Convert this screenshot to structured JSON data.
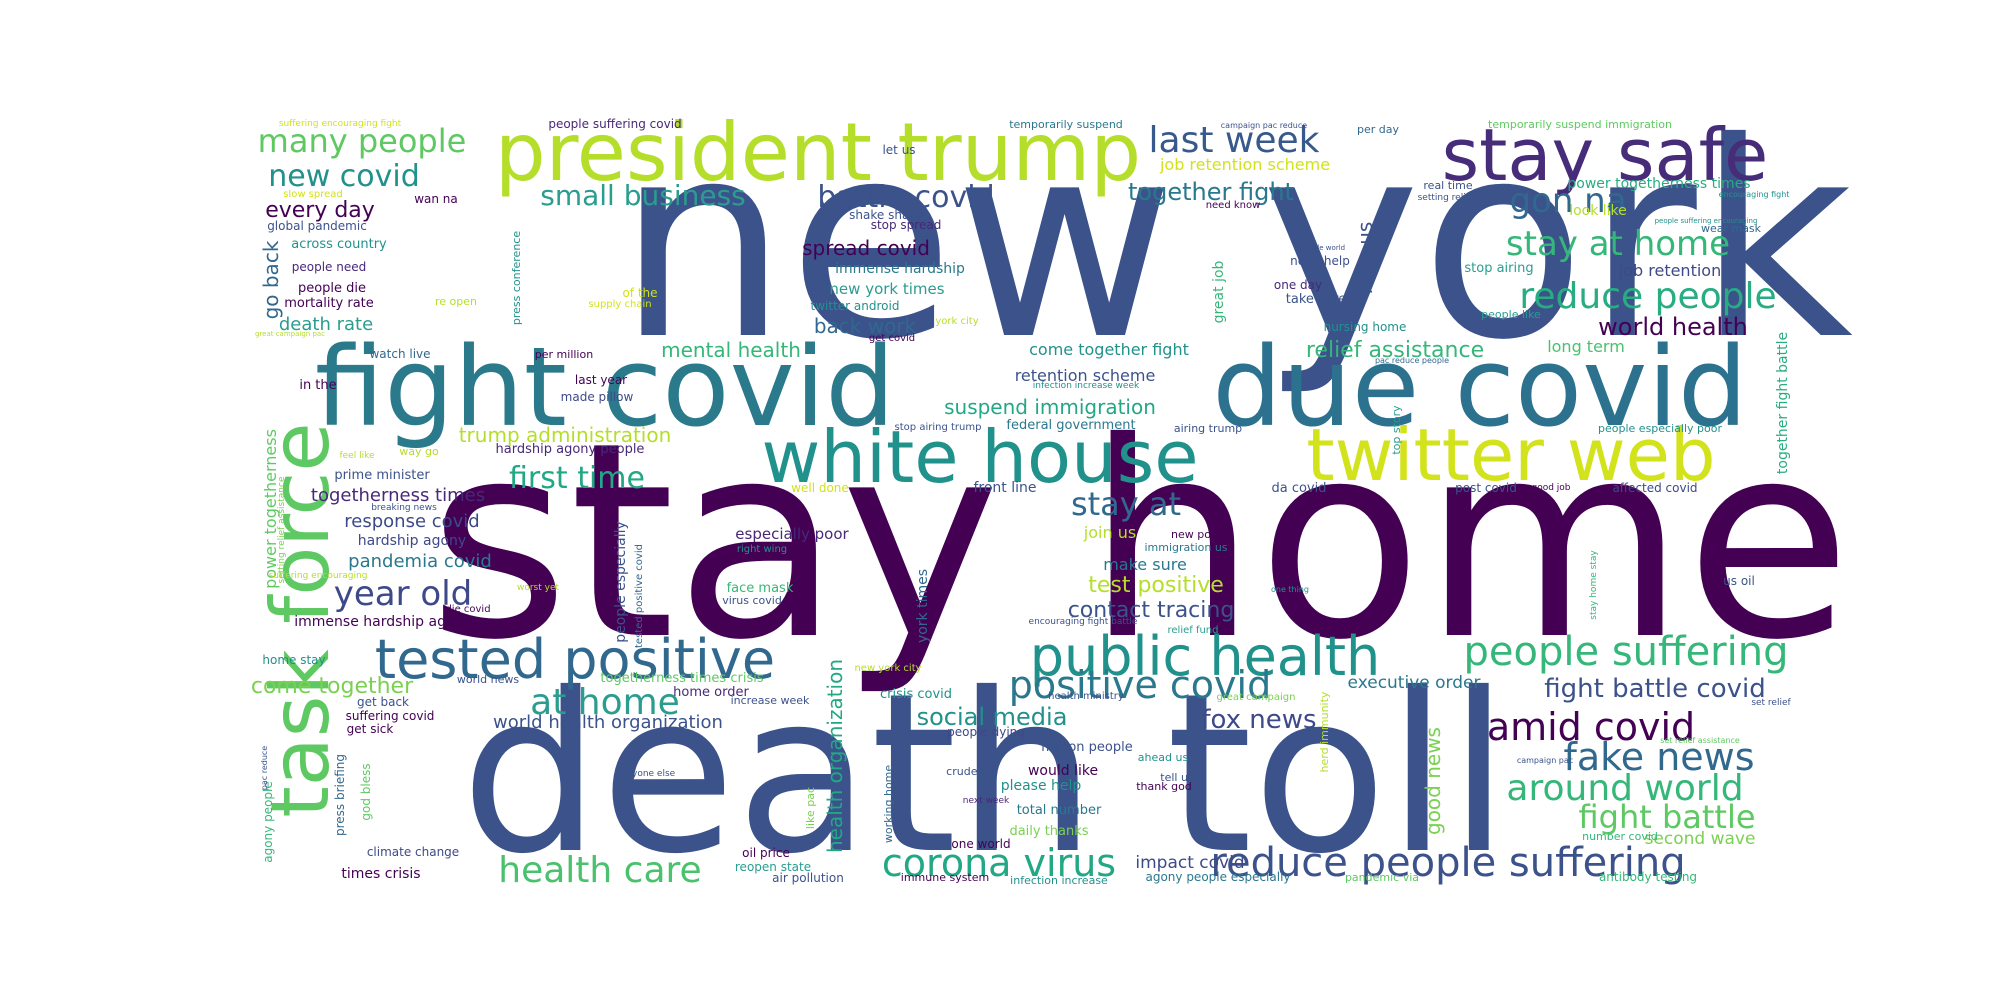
{
  "palette": [
    "#440154",
    "#3b528b",
    "#21918c",
    "#5ec962",
    "#b5de2b",
    "#fde725"
  ],
  "words": [
    {
      "text": "new york",
      "color": "#3b528b"
    },
    {
      "text": "stay home",
      "color": "#440154"
    },
    {
      "text": "death toll",
      "color": "#3b528b"
    },
    {
      "text": "fight covid",
      "color": "#2b7a8c"
    },
    {
      "text": "due covid",
      "color": "#2c728e"
    },
    {
      "text": "president trump",
      "color": "#b5de2b"
    },
    {
      "text": "stay safe",
      "color": "#472c7a"
    },
    {
      "text": "white house",
      "color": "#21918c"
    },
    {
      "text": "twitter web",
      "color": "#d2e21b"
    },
    {
      "text": "task force",
      "color": "#5ec962"
    },
    {
      "text": "tested positive",
      "color": "#31688e"
    },
    {
      "text": "public health",
      "color": "#21918c"
    },
    {
      "text": "reduce people suffering",
      "color": "#3b528b"
    },
    {
      "text": "people suffering",
      "color": "#35b779"
    },
    {
      "text": "positive covid",
      "color": "#2a788e"
    },
    {
      "text": "amid covid",
      "color": "#440154"
    },
    {
      "text": "fake news",
      "color": "#31688e"
    },
    {
      "text": "around world",
      "color": "#35b779"
    },
    {
      "text": "fight battle",
      "color": "#5ec962"
    },
    {
      "text": "corona virus",
      "color": "#22a884"
    },
    {
      "text": "health care",
      "color": "#4ac16d"
    },
    {
      "text": "at home",
      "color": "#2a9d8f"
    },
    {
      "text": "year old",
      "color": "#3e4989"
    },
    {
      "text": "stay at home",
      "color": "#35b779"
    },
    {
      "text": "reduce people",
      "color": "#27ad81"
    },
    {
      "text": "last week",
      "color": "#38598c"
    },
    {
      "text": "gon na",
      "color": "#31688e"
    },
    {
      "text": "battle covid",
      "color": "#3b528b"
    },
    {
      "text": "small business",
      "color": "#2a9d8f"
    },
    {
      "text": "many people",
      "color": "#5ec962"
    },
    {
      "text": "new covid",
      "color": "#21918c"
    },
    {
      "text": "first time",
      "color": "#22a884"
    },
    {
      "text": "stay at",
      "color": "#31688e"
    },
    {
      "text": "world health",
      "color": "#440154"
    },
    {
      "text": "fight battle covid",
      "color": "#3b528b"
    },
    {
      "text": "together fight",
      "color": "#2a788e"
    },
    {
      "text": "fox news",
      "color": "#3e4989"
    },
    {
      "text": "social media",
      "color": "#21918c"
    },
    {
      "text": "every day",
      "color": "#440154"
    },
    {
      "text": "come together",
      "color": "#7ad151"
    },
    {
      "text": "world health organization",
      "color": "#3b528b"
    },
    {
      "text": "trump administration",
      "color": "#b5de2b"
    },
    {
      "text": "suspend immigration",
      "color": "#22a884"
    },
    {
      "text": "mental health",
      "color": "#35b779"
    },
    {
      "text": "relief assistance",
      "color": "#35b779"
    },
    {
      "text": "test positive",
      "color": "#b5de2b"
    },
    {
      "text": "contact tracing",
      "color": "#3b528b"
    },
    {
      "text": "spread covid",
      "color": "#440154"
    },
    {
      "text": "back work",
      "color": "#31688e"
    },
    {
      "text": "death rate",
      "color": "#2a9d8f"
    },
    {
      "text": "pandemia covid",
      "color": "#2a788e"
    },
    {
      "text": "response covid",
      "color": "#3e4989"
    },
    {
      "text": "togetherness times",
      "color": "#482878"
    },
    {
      "text": "executive order",
      "color": "#2a788e"
    },
    {
      "text": "second wave",
      "color": "#7ad151"
    },
    {
      "text": "impact covid",
      "color": "#3e4989"
    },
    {
      "text": "good news",
      "color": "#7ad151"
    },
    {
      "text": "health organization",
      "color": "#22a884"
    },
    {
      "text": "help us",
      "color": "#3b528b"
    },
    {
      "text": "go back",
      "color": "#31688e"
    },
    {
      "text": "make sure",
      "color": "#2a788e"
    },
    {
      "text": "come together fight",
      "color": "#21918c"
    },
    {
      "text": "retention scheme",
      "color": "#3b528b"
    },
    {
      "text": "job retention scheme",
      "color": "#d2e21b"
    },
    {
      "text": "job retention",
      "color": "#3e4989"
    },
    {
      "text": "long term",
      "color": "#4ac16d"
    },
    {
      "text": "look like",
      "color": "#b5de2b"
    },
    {
      "text": "power togetherness times",
      "color": "#27ad81"
    },
    {
      "text": "power togetherness",
      "color": "#5ec962"
    },
    {
      "text": "together fight battle",
      "color": "#27ad81"
    },
    {
      "text": "york times",
      "color": "#31688e"
    },
    {
      "text": "new york times",
      "color": "#2a9d8f"
    },
    {
      "text": "immense hardship",
      "color": "#2a788e"
    },
    {
      "text": "immense hardship agony",
      "color": "#440154"
    },
    {
      "text": "hardship agony",
      "color": "#3e4989"
    },
    {
      "text": "people especially",
      "color": "#3b528b"
    },
    {
      "text": "especially poor",
      "color": "#482878"
    },
    {
      "text": "join us",
      "color": "#b5de2b"
    },
    {
      "text": "prime minister",
      "color": "#3b528b"
    },
    {
      "text": "people need",
      "color": "#482878"
    },
    {
      "text": "people die",
      "color": "#440154"
    },
    {
      "text": "mortality rate",
      "color": "#440154"
    },
    {
      "text": "across country",
      "color": "#21918c"
    },
    {
      "text": "global pandemic",
      "color": "#3b528b"
    },
    {
      "text": "watch live",
      "color": "#31688e"
    },
    {
      "text": "last year",
      "color": "#440154"
    },
    {
      "text": "made pillow",
      "color": "#3e4989"
    },
    {
      "text": "federal government",
      "color": "#2a788e"
    },
    {
      "text": "front line",
      "color": "#3b528b"
    },
    {
      "text": "great job",
      "color": "#35b779"
    },
    {
      "text": "nursing home",
      "color": "#21918c"
    },
    {
      "text": "take care",
      "color": "#3b528b"
    },
    {
      "text": "stop airing",
      "color": "#2a9d8f"
    },
    {
      "text": "need help",
      "color": "#3b528b"
    },
    {
      "text": "one day",
      "color": "#482878"
    },
    {
      "text": "shake shack",
      "color": "#3b528b"
    },
    {
      "text": "stop spread",
      "color": "#482878"
    },
    {
      "text": "twitter android",
      "color": "#21918c"
    },
    {
      "text": "get covid",
      "color": "#440154"
    },
    {
      "text": "times crisis",
      "color": "#440154"
    },
    {
      "text": "climate change",
      "color": "#3e4989"
    },
    {
      "text": "oil price",
      "color": "#440154"
    },
    {
      "text": "reopen state",
      "color": "#2a9d8f"
    },
    {
      "text": "air pollution",
      "color": "#3b528b"
    },
    {
      "text": "immune system",
      "color": "#440154"
    },
    {
      "text": "infection increase",
      "color": "#21918c"
    },
    {
      "text": "agony people especially",
      "color": "#2a788e"
    },
    {
      "text": "pandemic via",
      "color": "#5ec962"
    },
    {
      "text": "antibody testing",
      "color": "#35b779"
    },
    {
      "text": "number covid",
      "color": "#35b779"
    },
    {
      "text": "total number",
      "color": "#2a788e"
    },
    {
      "text": "daily thanks",
      "color": "#7ad151"
    },
    {
      "text": "one world",
      "color": "#440154"
    },
    {
      "text": "please help",
      "color": "#21918c"
    },
    {
      "text": "would like",
      "color": "#440154"
    },
    {
      "text": "million people",
      "color": "#3b528b"
    },
    {
      "text": "people dying",
      "color": "#3e4989"
    },
    {
      "text": "crude oil",
      "color": "#3b528b"
    },
    {
      "text": "next week",
      "color": "#482878"
    },
    {
      "text": "working home",
      "color": "#31688e"
    },
    {
      "text": "like pac",
      "color": "#7ad151"
    },
    {
      "text": "crisis covid",
      "color": "#21918c"
    },
    {
      "text": "home order",
      "color": "#482878"
    },
    {
      "text": "togetherness times crisis",
      "color": "#5ec962"
    },
    {
      "text": "world news",
      "color": "#3b528b"
    },
    {
      "text": "increase week",
      "color": "#3b528b"
    },
    {
      "text": "new york city",
      "color": "#b5de2b"
    },
    {
      "text": "god bless",
      "color": "#5ec962"
    },
    {
      "text": "press briefing",
      "color": "#31688e"
    },
    {
      "text": "agony people",
      "color": "#35b779"
    },
    {
      "text": "pac reduce",
      "color": "#3b528b"
    },
    {
      "text": "get sick",
      "color": "#440154"
    },
    {
      "text": "get back",
      "color": "#3b528b"
    },
    {
      "text": "suffering covid",
      "color": "#440154"
    },
    {
      "text": "home stay",
      "color": "#21918c"
    },
    {
      "text": "die covid",
      "color": "#440154"
    },
    {
      "text": "face mask",
      "color": "#35b779"
    },
    {
      "text": "virus covid",
      "color": "#3b528b"
    },
    {
      "text": "tested positive covid",
      "color": "#31688e"
    },
    {
      "text": "right wing",
      "color": "#21918c"
    },
    {
      "text": "worst yet",
      "color": "#b5de2b"
    },
    {
      "text": "suffering encouraging",
      "color": "#b5de2b"
    },
    {
      "text": "setting relief assistance",
      "color": "#7ad151"
    },
    {
      "text": "feel like",
      "color": "#b5de2b"
    },
    {
      "text": "way go",
      "color": "#b5de2b"
    },
    {
      "text": "breaking news",
      "color": "#3b528b"
    },
    {
      "text": "hardship agony people",
      "color": "#482878"
    },
    {
      "text": "well done",
      "color": "#d2e21b"
    },
    {
      "text": "in the",
      "color": "#440154"
    },
    {
      "text": "per million",
      "color": "#440154"
    },
    {
      "text": "press conference",
      "color": "#21918c"
    },
    {
      "text": "re open",
      "color": "#b5de2b"
    },
    {
      "text": "of the",
      "color": "#d2e21b"
    },
    {
      "text": "supply chain",
      "color": "#d2e21b"
    },
    {
      "text": "york city",
      "color": "#b5de2b"
    },
    {
      "text": "great campaign pac",
      "color": "#b5de2b"
    },
    {
      "text": "slow spread",
      "color": "#d2e21b"
    },
    {
      "text": "wan na",
      "color": "#440154"
    },
    {
      "text": "suffering encouraging fight",
      "color": "#d2e21b"
    },
    {
      "text": "people suffering covid",
      "color": "#482878"
    },
    {
      "text": "let us",
      "color": "#3b528b"
    },
    {
      "text": "temporarily suspend",
      "color": "#2a788e"
    },
    {
      "text": "campaign pac reduce",
      "color": "#3b528b"
    },
    {
      "text": "per day",
      "color": "#31688e"
    },
    {
      "text": "temporarily suspend immigration",
      "color": "#5ec962"
    },
    {
      "text": "real time",
      "color": "#3b528b"
    },
    {
      "text": "setting relief",
      "color": "#3b528b"
    },
    {
      "text": "encouraging fight",
      "color": "#21918c"
    },
    {
      "text": "need know",
      "color": "#440154"
    },
    {
      "text": "whole world",
      "color": "#3b528b"
    },
    {
      "text": "people suffering encouraging",
      "color": "#21918c"
    },
    {
      "text": "wear mask",
      "color": "#31688e"
    },
    {
      "text": "people like",
      "color": "#2a9d8f"
    },
    {
      "text": "pac reduce people",
      "color": "#31688e"
    },
    {
      "text": "infection increase week",
      "color": "#21918c"
    },
    {
      "text": "airing trump",
      "color": "#3b528b"
    },
    {
      "text": "stop airing trump",
      "color": "#3b528b"
    },
    {
      "text": "top story",
      "color": "#2a9d8f"
    },
    {
      "text": "people especially poor",
      "color": "#21918c"
    },
    {
      "text": "da covid",
      "color": "#3b528b"
    },
    {
      "text": "post covid",
      "color": "#3b528b"
    },
    {
      "text": "good job",
      "color": "#440154"
    },
    {
      "text": "affected covid",
      "color": "#3e4989"
    },
    {
      "text": "new post",
      "color": "#440154"
    },
    {
      "text": "immigration us",
      "color": "#2a788e"
    },
    {
      "text": "one thing",
      "color": "#21918c"
    },
    {
      "text": "us oil",
      "color": "#3b528b"
    },
    {
      "text": "stay home stay",
      "color": "#35b779"
    },
    {
      "text": "encouraging fight battle",
      "color": "#3b528b"
    },
    {
      "text": "relief fund",
      "color": "#2a9d8f"
    },
    {
      "text": "health ministry",
      "color": "#3b528b"
    },
    {
      "text": "great campaign",
      "color": "#7ad151"
    },
    {
      "text": "set relief",
      "color": "#3b528b"
    },
    {
      "text": "set relief assistance",
      "color": "#5ec962"
    },
    {
      "text": "campaign pac",
      "color": "#3b528b"
    },
    {
      "text": "herd immunity",
      "color": "#b5de2b"
    },
    {
      "text": "anyone else",
      "color": "#3b528b"
    },
    {
      "text": "ahead us",
      "color": "#21918c"
    },
    {
      "text": "tell us",
      "color": "#3b528b"
    },
    {
      "text": "thank god",
      "color": "#440154"
    }
  ]
}
